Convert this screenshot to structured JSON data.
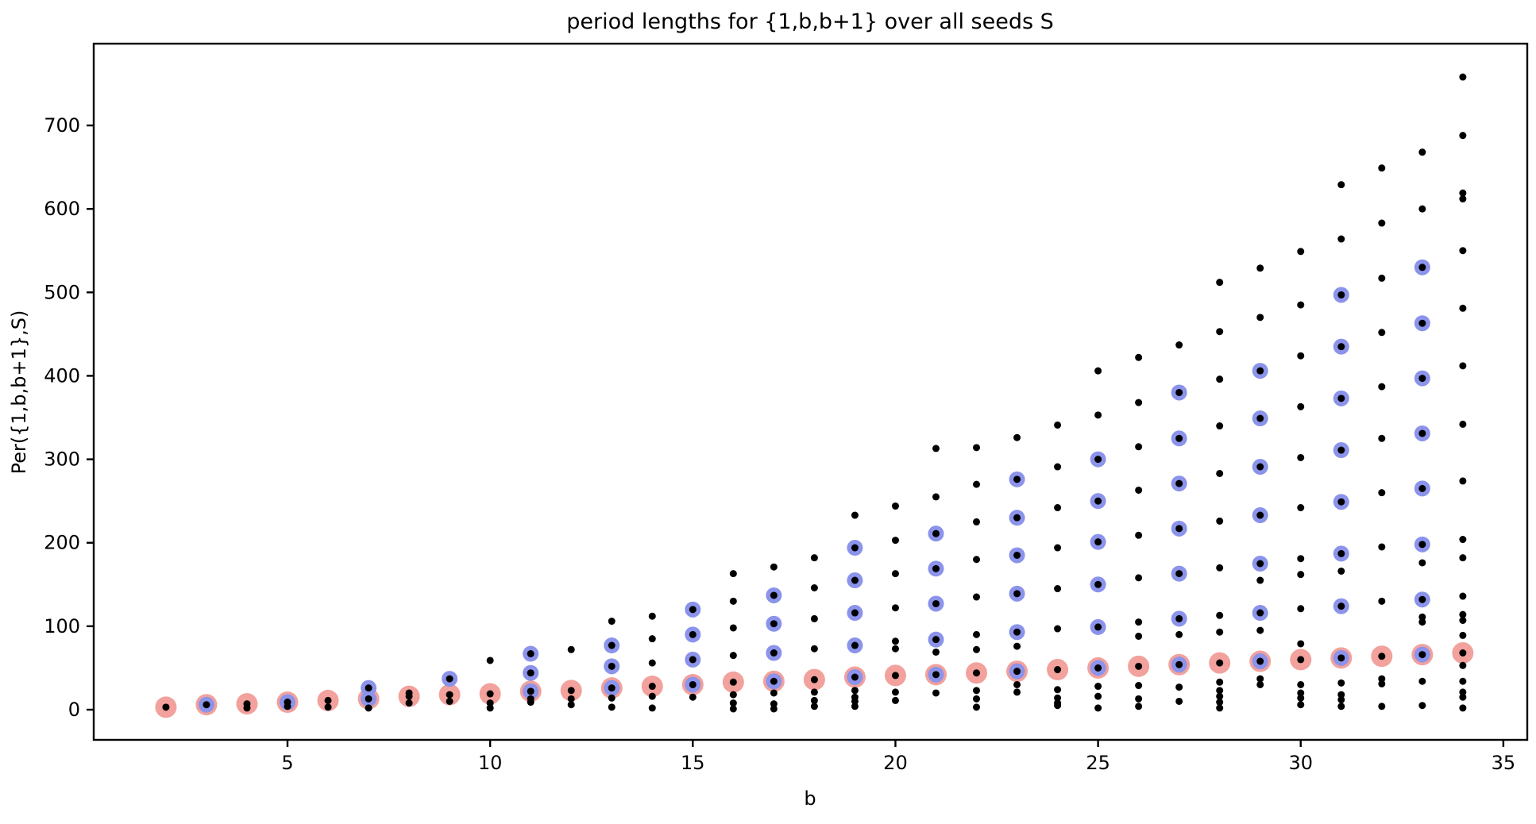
{
  "chart_data": {
    "type": "scatter",
    "title": "period lengths for {1,b,b+1} over all seeds S",
    "xlabel": "b",
    "ylabel": "Per({1,b,b+1},S)",
    "x_ticks": [
      5,
      10,
      15,
      20,
      25,
      30,
      35
    ],
    "y_ticks": [
      0,
      100,
      200,
      300,
      400,
      500,
      600,
      700
    ],
    "xlim": [
      0.2,
      35.6
    ],
    "ylim": [
      -36,
      798
    ],
    "grid": false,
    "legend": "none",
    "colors": {
      "black_point": "#000000",
      "red_ring": "#f2a19c",
      "blue_ring": "#8b93ea",
      "axis": "#000000"
    },
    "marker_px": {
      "black_r": 4.5,
      "blue_r": 10,
      "red_r": 13.5
    },
    "series_notes": {
      "black": "all observed period lengths Per({1,b,b+1},S) for each b",
      "red": "one highlighted (minimal) period per b, approx 2b",
      "blue": "highlighted multiples of the base period (odd b columns)"
    },
    "columns": [
      {
        "b": 2,
        "red": 3,
        "blue": [],
        "black": [
          3
        ]
      },
      {
        "b": 3,
        "red": 6,
        "blue": [
          6
        ],
        "black": [
          6
        ]
      },
      {
        "b": 4,
        "red": 7,
        "blue": [],
        "black": [
          2,
          7
        ]
      },
      {
        "b": 5,
        "red": 9,
        "blue": [
          9
        ],
        "black": [
          4,
          9
        ]
      },
      {
        "b": 6,
        "red": 11,
        "blue": [],
        "black": [
          3,
          11
        ]
      },
      {
        "b": 7,
        "red": 13,
        "blue": [
          13,
          26
        ],
        "black": [
          2,
          13,
          26
        ]
      },
      {
        "b": 8,
        "red": 16,
        "blue": [],
        "black": [
          8,
          16,
          20
        ]
      },
      {
        "b": 9,
        "red": 18,
        "blue": [
          37
        ],
        "black": [
          10,
          18,
          37
        ]
      },
      {
        "b": 10,
        "red": 19,
        "blue": [],
        "black": [
          2,
          8,
          19,
          59
        ]
      },
      {
        "b": 11,
        "red": 22,
        "blue": [
          22,
          44,
          67
        ],
        "black": [
          9,
          13,
          22,
          44,
          67
        ]
      },
      {
        "b": 12,
        "red": 23,
        "blue": [],
        "black": [
          6,
          13,
          23,
          72
        ]
      },
      {
        "b": 13,
        "red": 26,
        "blue": [
          26,
          52,
          77
        ],
        "black": [
          3,
          14,
          26,
          52,
          77,
          106
        ]
      },
      {
        "b": 14,
        "red": 28,
        "blue": [],
        "black": [
          2,
          16,
          28,
          56,
          85,
          112
        ]
      },
      {
        "b": 15,
        "red": 30,
        "blue": [
          30,
          60,
          90,
          120
        ],
        "black": [
          15,
          30,
          60,
          90,
          120
        ]
      },
      {
        "b": 16,
        "red": 33,
        "blue": [],
        "black": [
          1,
          8,
          18,
          33,
          65,
          98,
          130,
          163
        ]
      },
      {
        "b": 17,
        "red": 34,
        "blue": [
          34,
          68,
          103,
          137
        ],
        "black": [
          1,
          7,
          20,
          34,
          68,
          103,
          137,
          171
        ]
      },
      {
        "b": 18,
        "red": 36,
        "blue": [],
        "black": [
          4,
          11,
          21,
          36,
          73,
          109,
          146,
          182
        ]
      },
      {
        "b": 19,
        "red": 39,
        "blue": [
          39,
          77,
          116,
          155,
          194
        ],
        "black": [
          4,
          10,
          15,
          23,
          39,
          77,
          116,
          155,
          194,
          233
        ]
      },
      {
        "b": 20,
        "red": 41,
        "blue": [],
        "black": [
          11,
          21,
          41,
          73,
          82,
          122,
          163,
          203,
          244
        ]
      },
      {
        "b": 21,
        "red": 42,
        "blue": [
          42,
          84,
          127,
          169,
          211
        ],
        "black": [
          20,
          42,
          69,
          84,
          127,
          169,
          211,
          255,
          313
        ]
      },
      {
        "b": 22,
        "red": 44,
        "blue": [],
        "black": [
          3,
          13,
          23,
          44,
          72,
          90,
          135,
          180,
          225,
          270,
          314
        ]
      },
      {
        "b": 23,
        "red": 46,
        "blue": [
          46,
          93,
          139,
          185,
          230,
          276
        ],
        "black": [
          21,
          30,
          46,
          76,
          93,
          139,
          185,
          230,
          276,
          326
        ]
      },
      {
        "b": 24,
        "red": 48,
        "blue": [],
        "black": [
          5,
          8,
          14,
          24,
          48,
          97,
          145,
          194,
          242,
          291,
          341
        ]
      },
      {
        "b": 25,
        "red": 50,
        "blue": [
          50,
          99,
          150,
          201,
          250,
          300
        ],
        "black": [
          2,
          16,
          28,
          50,
          99,
          150,
          201,
          250,
          300,
          353,
          406
        ]
      },
      {
        "b": 26,
        "red": 52,
        "blue": [],
        "black": [
          4,
          13,
          29,
          52,
          88,
          105,
          158,
          209,
          263,
          315,
          368,
          422
        ]
      },
      {
        "b": 27,
        "red": 54,
        "blue": [
          54,
          109,
          163,
          217,
          271,
          325,
          380
        ],
        "black": [
          10,
          27,
          54,
          90,
          109,
          163,
          217,
          271,
          325,
          380,
          437
        ]
      },
      {
        "b": 28,
        "red": 56,
        "blue": [],
        "black": [
          2,
          9,
          16,
          23,
          33,
          56,
          93,
          113,
          170,
          226,
          283,
          340,
          396,
          453,
          512
        ]
      },
      {
        "b": 29,
        "red": 58,
        "blue": [
          58,
          116,
          175,
          233,
          291,
          349,
          406
        ],
        "black": [
          30,
          37,
          58,
          95,
          116,
          155,
          175,
          233,
          291,
          349,
          406,
          470,
          529
        ]
      },
      {
        "b": 30,
        "red": 60,
        "blue": [],
        "black": [
          6,
          14,
          20,
          30,
          60,
          79,
          121,
          162,
          181,
          242,
          302,
          363,
          424,
          485,
          549
        ]
      },
      {
        "b": 31,
        "red": 62,
        "blue": [
          62,
          124,
          187,
          249,
          311,
          373,
          435,
          497
        ],
        "black": [
          4,
          12,
          18,
          32,
          62,
          124,
          166,
          187,
          249,
          311,
          373,
          435,
          497,
          564,
          629
        ]
      },
      {
        "b": 32,
        "red": 64,
        "blue": [],
        "black": [
          4,
          31,
          37,
          64,
          130,
          195,
          260,
          325,
          387,
          452,
          517,
          583,
          649
        ]
      },
      {
        "b": 33,
        "red": 66,
        "blue": [
          66,
          132,
          198,
          265,
          331,
          397,
          463,
          530
        ],
        "black": [
          5,
          34,
          66,
          105,
          111,
          132,
          176,
          198,
          265,
          331,
          397,
          463,
          530,
          600,
          668
        ]
      },
      {
        "b": 34,
        "red": 68,
        "blue": [],
        "black": [
          2,
          15,
          21,
          34,
          53,
          68,
          89,
          107,
          114,
          136,
          182,
          204,
          274,
          342,
          412,
          481,
          550,
          612,
          619,
          688,
          758
        ]
      }
    ]
  }
}
